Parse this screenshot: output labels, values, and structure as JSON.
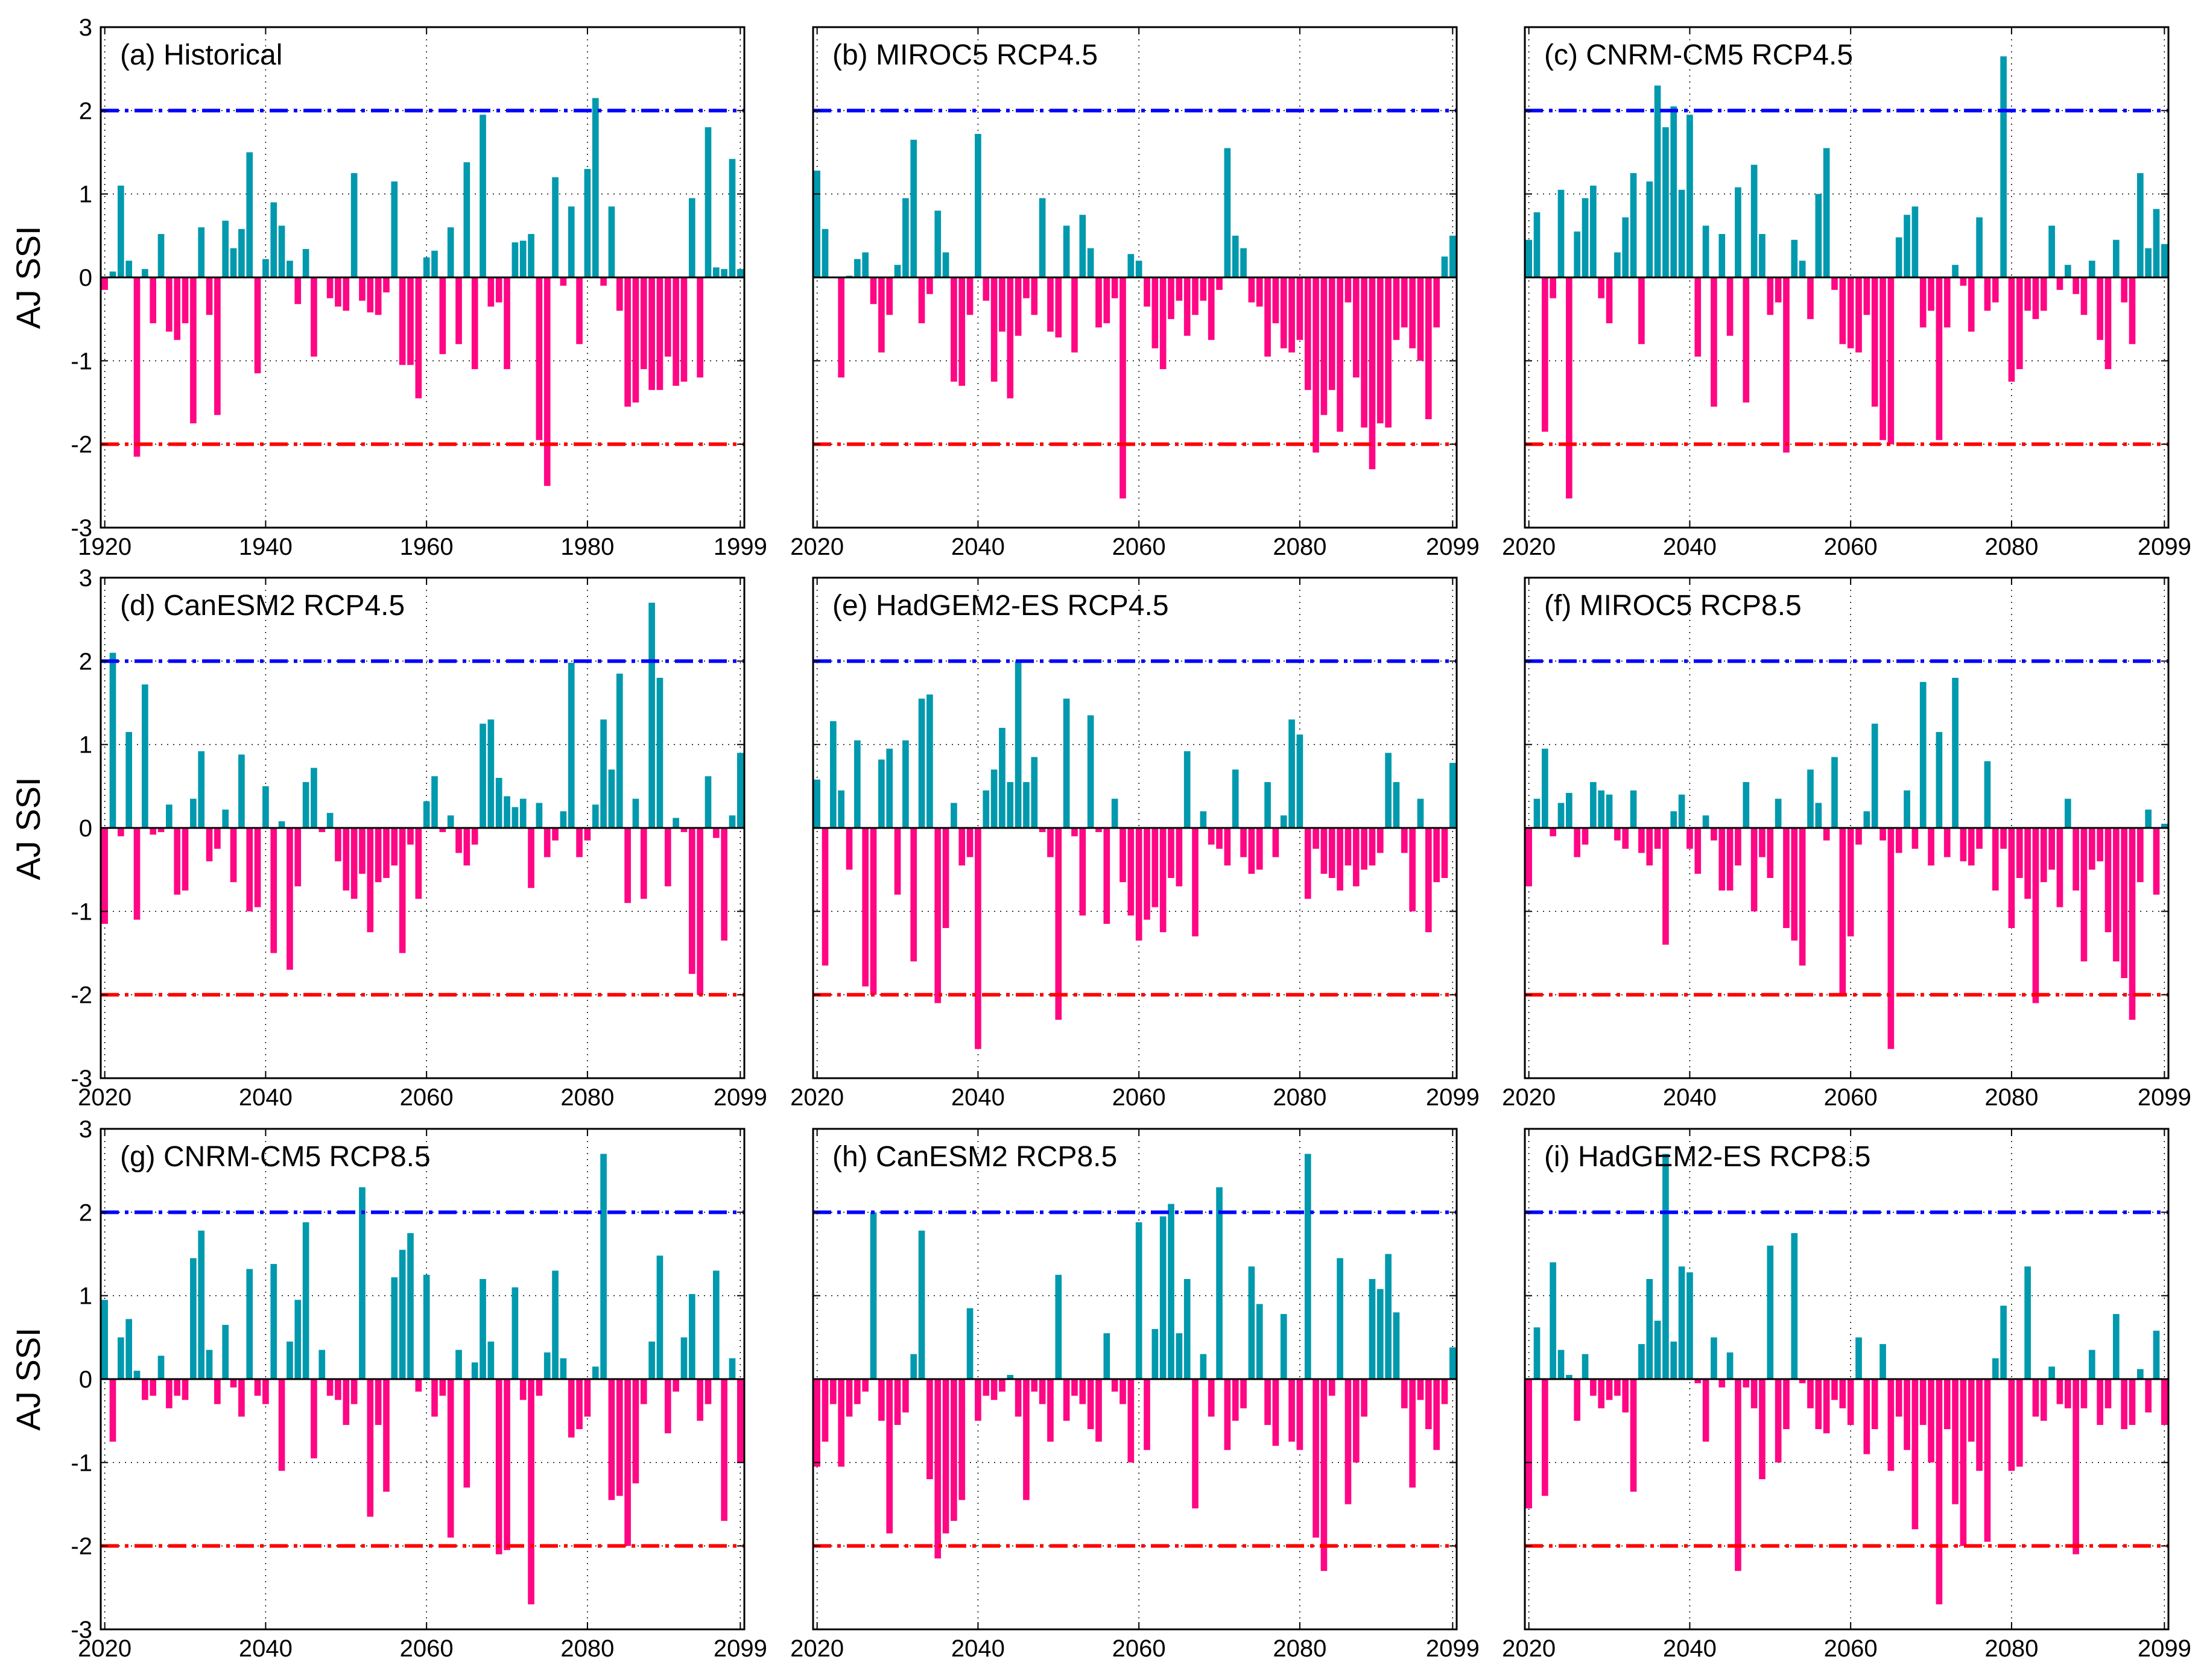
{
  "figure": {
    "ylabel": "AJ SSI",
    "colors": {
      "positive": "#0099AD",
      "negative": "#FF0784",
      "wet_threshold": "#0000FF",
      "dry_threshold": "#FF0000",
      "zero_line": "#000000",
      "grid": "#000000"
    }
  },
  "chart_data": [
    {
      "type": "bar",
      "title": "(a) Historical",
      "x_start": 1920,
      "xlim": [
        1920,
        1999
      ],
      "ylim": [
        -3,
        3
      ],
      "xticks": [
        "1920",
        "1940",
        "1960",
        "1980",
        "1999"
      ],
      "yticks": [
        "-3",
        "-2",
        "-1",
        "0",
        "1",
        "2",
        "3"
      ],
      "thresholds": {
        "upper": 2,
        "lower": -2
      },
      "values": [
        -0.15,
        0.07,
        1.1,
        0.2,
        -2.15,
        0.1,
        -0.55,
        0.52,
        -0.65,
        -0.75,
        -0.55,
        -1.75,
        0.6,
        -0.45,
        -1.65,
        0.68,
        0.35,
        0.58,
        1.5,
        -1.15,
        0.22,
        0.9,
        0.62,
        0.2,
        -0.32,
        0.34,
        -0.95,
        0,
        -0.25,
        -0.35,
        -0.4,
        1.25,
        -0.28,
        -0.42,
        -0.45,
        -0.18,
        1.15,
        -1.05,
        -1.05,
        -1.45,
        0.24,
        0.32,
        -0.92,
        0.6,
        -0.8,
        1.38,
        -1.1,
        1.95,
        -0.35,
        -0.3,
        -1.1,
        0.42,
        0.44,
        0.52,
        -1.95,
        -2.5,
        1.2,
        -0.1,
        0.85,
        -0.8,
        1.3,
        2.15,
        -0.1,
        0.85,
        -0.4,
        -1.55,
        -1.5,
        -1.1,
        -1.35,
        -1.35,
        -0.95,
        -1.3,
        -1.25,
        0.95,
        -1.2,
        1.8,
        0.12,
        0.1,
        1.42,
        0.1
      ]
    },
    {
      "type": "bar",
      "title": "(b) MIROC5 RCP4.5",
      "x_start": 2020,
      "xlim": [
        2020,
        2099
      ],
      "ylim": [
        -3,
        3
      ],
      "xticks": [
        "2020",
        "2040",
        "2060",
        "2080",
        "2099"
      ],
      "yticks": [
        "-3",
        "-2",
        "-1",
        "0",
        "1",
        "2",
        "3"
      ],
      "thresholds": {
        "upper": 2,
        "lower": -2
      },
      "values": [
        1.28,
        0.58,
        0,
        -1.2,
        0.02,
        0.22,
        0.3,
        -0.32,
        -0.9,
        -0.45,
        0.15,
        0.95,
        1.65,
        -0.55,
        -0.2,
        0.8,
        0.3,
        -1.25,
        -1.3,
        -0.45,
        1.72,
        -0.28,
        -1.25,
        -0.65,
        -1.45,
        -0.7,
        -0.25,
        -0.45,
        0.95,
        -0.65,
        -0.72,
        0.62,
        -0.9,
        0.75,
        0.35,
        -0.6,
        -0.55,
        -0.25,
        -2.65,
        0.28,
        0.2,
        -0.35,
        -0.85,
        -1.1,
        -0.5,
        -0.28,
        -0.7,
        -0.45,
        -0.28,
        -0.75,
        -0.15,
        1.55,
        0.5,
        0.35,
        -0.3,
        -0.35,
        -0.95,
        -0.55,
        -0.85,
        -0.9,
        -0.75,
        -1.35,
        -2.1,
        -1.65,
        -1.35,
        -1.85,
        -0.3,
        -1.2,
        -1.8,
        -2.3,
        -1.75,
        -1.8,
        -0.75,
        -0.6,
        -0.85,
        -1.0,
        -1.7,
        -0.6,
        0.25,
        0.5
      ]
    },
    {
      "type": "bar",
      "title": "(c) CNRM-CM5 RCP4.5",
      "x_start": 2020,
      "xlim": [
        2020,
        2099
      ],
      "ylim": [
        -3,
        3
      ],
      "xticks": [
        "2020",
        "2040",
        "2060",
        "2080",
        "2099"
      ],
      "yticks": [
        "-3",
        "-2",
        "-1",
        "0",
        "1",
        "2",
        "3"
      ],
      "thresholds": {
        "upper": 2,
        "lower": -2
      },
      "values": [
        0.45,
        0.78,
        -1.85,
        -0.25,
        1.05,
        -2.65,
        0.55,
        0.95,
        1.1,
        -0.25,
        -0.55,
        0.3,
        0.72,
        1.25,
        -0.8,
        1.15,
        2.3,
        1.8,
        2.05,
        1.05,
        1.95,
        -0.95,
        0.62,
        -1.55,
        0.52,
        -0.7,
        1.08,
        -1.5,
        1.35,
        0.52,
        -0.45,
        -0.3,
        -2.1,
        0.45,
        0.2,
        -0.5,
        1.0,
        1.55,
        -0.15,
        -0.8,
        -0.85,
        -0.9,
        -0.45,
        -1.55,
        -1.95,
        -2.0,
        0.48,
        0.75,
        0.85,
        -0.6,
        -0.4,
        -1.95,
        -0.6,
        0.15,
        -0.1,
        -0.65,
        0.72,
        -0.4,
        -0.3,
        2.65,
        -1.25,
        -1.1,
        -0.4,
        -0.5,
        -0.4,
        0.62,
        -0.15,
        0.15,
        -0.2,
        -0.45,
        0.2,
        -0.75,
        -1.1,
        0.45,
        -0.3,
        -0.8,
        1.25,
        0.35,
        0.82,
        0.4
      ]
    },
    {
      "type": "bar",
      "title": "(d) CanESM2 RCP4.5",
      "x_start": 2020,
      "xlim": [
        2020,
        2099
      ],
      "ylim": [
        -3,
        3
      ],
      "xticks": [
        "2020",
        "2040",
        "2060",
        "2080",
        "2099"
      ],
      "yticks": [
        "-3",
        "-2",
        "-1",
        "0",
        "1",
        "2",
        "3"
      ],
      "thresholds": {
        "upper": 2,
        "lower": -2
      },
      "values": [
        -1.15,
        2.1,
        -0.1,
        1.15,
        -1.1,
        1.72,
        -0.08,
        -0.05,
        0.28,
        -0.8,
        -0.75,
        0.35,
        0.92,
        -0.4,
        -0.25,
        0.22,
        -0.65,
        0.88,
        -1.0,
        -0.95,
        0.5,
        -1.5,
        0.08,
        -1.7,
        -0.7,
        0.55,
        0.72,
        -0.05,
        0.18,
        -0.4,
        -0.75,
        -0.85,
        -0.55,
        -1.25,
        -0.65,
        -0.6,
        -0.45,
        -1.5,
        -0.2,
        -0.85,
        0.32,
        0.62,
        -0.05,
        0.15,
        -0.3,
        -0.45,
        -0.2,
        1.25,
        1.3,
        0.6,
        0.38,
        0.25,
        0.35,
        -0.72,
        0.3,
        -0.35,
        -0.15,
        0.2,
        1.98,
        -0.35,
        -0.15,
        0.28,
        1.3,
        0.7,
        1.85,
        -0.9,
        0.35,
        -0.85,
        2.7,
        1.8,
        -0.7,
        0.12,
        -0.05,
        -1.75,
        -2.0,
        0.62,
        -0.12,
        -1.35,
        0.15,
        0.9
      ]
    },
    {
      "type": "bar",
      "title": "(e) HadGEM2-ES RCP4.5",
      "x_start": 2020,
      "xlim": [
        2020,
        2099
      ],
      "ylim": [
        -3,
        3
      ],
      "xticks": [
        "2020",
        "2040",
        "2060",
        "2080",
        "2099"
      ],
      "yticks": [
        "-3",
        "-2",
        "-1",
        "0",
        "1",
        "2",
        "3"
      ],
      "thresholds": {
        "upper": 2,
        "lower": -2
      },
      "values": [
        0.58,
        -1.65,
        1.28,
        0.45,
        -0.5,
        1.05,
        -1.9,
        -2.0,
        0.82,
        0.95,
        -0.8,
        1.05,
        -1.6,
        1.55,
        1.6,
        -2.1,
        -1.2,
        0.3,
        -0.45,
        -0.35,
        -2.65,
        0.45,
        0.7,
        1.2,
        0.55,
        2.0,
        0.55,
        0.85,
        -0.05,
        -0.35,
        -2.3,
        1.55,
        -0.1,
        -1.05,
        1.35,
        -0.05,
        -1.15,
        0.35,
        -0.65,
        -1.05,
        -1.35,
        -1.1,
        -0.95,
        -1.25,
        -0.6,
        -0.7,
        0.92,
        -1.3,
        0.2,
        -0.2,
        -0.25,
        -0.45,
        0.7,
        -0.35,
        -0.55,
        -0.5,
        0.55,
        -0.35,
        0.15,
        1.3,
        1.12,
        -0.85,
        -0.25,
        -0.55,
        -0.6,
        -0.75,
        -0.45,
        -0.7,
        -0.5,
        -0.45,
        -0.3,
        0.9,
        0.55,
        -0.3,
        -1.0,
        0.35,
        -1.25,
        -0.65,
        -0.6,
        0.78
      ]
    },
    {
      "type": "bar",
      "title": "(f) MIROC5 RCP8.5",
      "x_start": 2020,
      "xlim": [
        2020,
        2099
      ],
      "ylim": [
        -3,
        3
      ],
      "xticks": [
        "2020",
        "2040",
        "2060",
        "2080",
        "2099"
      ],
      "yticks": [
        "-3",
        "-2",
        "-1",
        "0",
        "1",
        "2",
        "3"
      ],
      "thresholds": {
        "upper": 2,
        "lower": -2
      },
      "values": [
        -0.7,
        0.35,
        0.95,
        -0.1,
        0.3,
        0.42,
        -0.35,
        -0.2,
        0.55,
        0.45,
        0.4,
        -0.15,
        -0.25,
        0.45,
        -0.3,
        -0.45,
        -0.25,
        -1.4,
        0.2,
        0.4,
        -0.25,
        -0.55,
        0.15,
        -0.15,
        -0.75,
        -0.75,
        -0.45,
        0.55,
        -1.0,
        -0.35,
        -0.6,
        0.35,
        -1.2,
        -1.35,
        -1.65,
        0.7,
        0.3,
        -0.15,
        0.85,
        -2.0,
        -1.3,
        -0.2,
        0.2,
        1.25,
        -0.15,
        -2.65,
        -0.3,
        0.45,
        -0.25,
        1.75,
        -0.45,
        1.15,
        -0.35,
        1.8,
        -0.4,
        -0.45,
        -0.25,
        0.8,
        -0.75,
        -0.25,
        -1.2,
        -0.6,
        -0.85,
        -2.1,
        -0.65,
        -0.5,
        -0.95,
        0.35,
        -0.75,
        -1.6,
        -0.5,
        -0.4,
        -1.25,
        -1.6,
        -1.8,
        -2.3,
        -0.65,
        0.22,
        -0.8,
        0.05
      ]
    },
    {
      "type": "bar",
      "title": "(g) CNRM-CM5 RCP8.5",
      "x_start": 2020,
      "xlim": [
        2020,
        2099
      ],
      "ylim": [
        -3,
        3
      ],
      "xticks": [
        "2020",
        "2040",
        "2060",
        "2080",
        "2099"
      ],
      "yticks": [
        "-3",
        "-2",
        "-1",
        "0",
        "1",
        "2",
        "3"
      ],
      "thresholds": {
        "upper": 2,
        "lower": -2
      },
      "values": [
        0.95,
        -0.75,
        0.5,
        0.72,
        0.1,
        -0.25,
        -0.2,
        0.28,
        -0.35,
        -0.2,
        -0.25,
        1.45,
        1.78,
        0.35,
        -0.3,
        0.65,
        -0.1,
        -0.45,
        1.32,
        -0.2,
        -0.3,
        1.38,
        -1.1,
        0.45,
        0.95,
        1.88,
        -0.95,
        0.35,
        -0.2,
        -0.25,
        -0.55,
        -0.3,
        2.3,
        -1.65,
        -0.55,
        -1.35,
        1.22,
        1.55,
        1.75,
        -0.15,
        1.25,
        -0.45,
        -0.2,
        -1.9,
        0.35,
        -1.3,
        0.2,
        1.2,
        0.45,
        -2.1,
        -2.05,
        1.1,
        -0.25,
        -2.7,
        -0.2,
        0.32,
        1.3,
        0.25,
        -0.7,
        -0.6,
        -0.45,
        0.15,
        2.7,
        -1.45,
        -1.4,
        -2.0,
        -1.25,
        -0.3,
        0.45,
        1.48,
        -0.65,
        -0.15,
        0.5,
        1.02,
        -0.5,
        -0.3,
        1.3,
        -1.7,
        0.25,
        -1.0
      ]
    },
    {
      "type": "bar",
      "title": "(h) CanESM2 RCP8.5",
      "x_start": 2020,
      "xlim": [
        2020,
        2099
      ],
      "ylim": [
        -3,
        3
      ],
      "xticks": [
        "2020",
        "2040",
        "2060",
        "2080",
        "2099"
      ],
      "yticks": [
        "-3",
        "-2",
        "-1",
        "0",
        "1",
        "2",
        "3"
      ],
      "thresholds": {
        "upper": 2,
        "lower": -2
      },
      "values": [
        -1.05,
        -0.75,
        -0.3,
        -1.05,
        -0.45,
        -0.3,
        -0.15,
        2.0,
        -0.5,
        -1.85,
        -0.55,
        -0.4,
        0.3,
        1.78,
        -1.2,
        -2.15,
        -1.85,
        -1.7,
        -1.45,
        0.85,
        -0.5,
        -0.2,
        -0.25,
        -0.15,
        0.05,
        -0.45,
        -1.45,
        -0.15,
        -0.3,
        -0.75,
        1.25,
        -0.5,
        -0.2,
        -0.3,
        -0.6,
        -0.75,
        0.55,
        -0.15,
        -0.3,
        -1.0,
        1.88,
        -0.85,
        0.6,
        1.95,
        2.1,
        0.55,
        1.2,
        -1.55,
        0.3,
        -0.45,
        2.3,
        -0.85,
        -0.5,
        -0.35,
        1.35,
        0.9,
        -0.55,
        -0.8,
        0.78,
        -0.75,
        -0.85,
        2.7,
        -1.9,
        -2.3,
        -0.2,
        1.45,
        -1.5,
        -1.0,
        -0.45,
        1.2,
        1.08,
        1.5,
        0.8,
        -0.35,
        -1.3,
        -0.25,
        -0.6,
        -0.85,
        -0.3,
        0.38
      ]
    },
    {
      "type": "bar",
      "title": "(i) HadGEM2-ES RCP8.5",
      "x_start": 2020,
      "xlim": [
        2020,
        2099
      ],
      "ylim": [
        -3,
        3
      ],
      "xticks": [
        "2020",
        "2040",
        "2060",
        "2080",
        "2099"
      ],
      "yticks": [
        "-3",
        "-2",
        "-1",
        "0",
        "1",
        "2",
        "3"
      ],
      "thresholds": {
        "upper": 2,
        "lower": -2
      },
      "values": [
        -1.55,
        0.62,
        -1.4,
        1.4,
        0.35,
        0.05,
        -0.5,
        0.3,
        -0.2,
        -0.35,
        -0.25,
        -0.2,
        -0.4,
        -1.35,
        0.42,
        1.2,
        0.7,
        2.7,
        0.45,
        1.35,
        1.28,
        -0.05,
        -0.75,
        0.5,
        -0.1,
        0.32,
        -2.3,
        -0.1,
        -0.35,
        -1.2,
        1.6,
        -1.0,
        -0.6,
        1.75,
        -0.05,
        -0.35,
        -0.6,
        -0.65,
        -0.25,
        -0.35,
        -0.55,
        0.5,
        -0.9,
        -0.6,
        0.42,
        -1.1,
        -0.45,
        -0.85,
        -1.8,
        -0.55,
        -1.0,
        -2.7,
        -0.6,
        -1.5,
        -2.0,
        -0.75,
        -1.1,
        -1.95,
        0.25,
        0.88,
        -1.1,
        -1.05,
        1.35,
        -0.45,
        -0.5,
        0.15,
        -0.3,
        -0.35,
        -2.1,
        -0.35,
        0.35,
        -0.55,
        -0.35,
        0.78,
        -0.6,
        -0.55,
        0.12,
        -0.4,
        0.58,
        -0.55
      ]
    }
  ]
}
